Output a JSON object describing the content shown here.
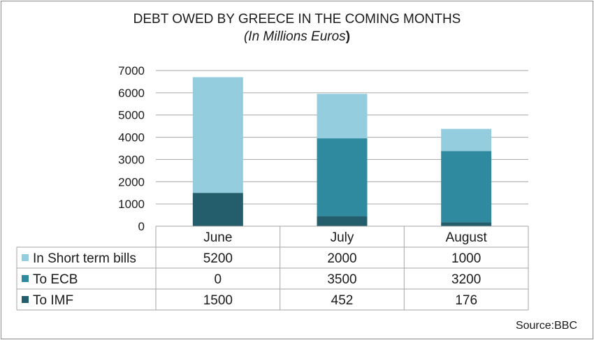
{
  "chart_data": {
    "type": "bar",
    "stacked": true,
    "title": "DEBT OWED BY GREECE IN THE COMING MONTHS",
    "subtitle_main": "(In Millions Euros",
    "subtitle_close": ")",
    "categories": [
      "June",
      "July",
      "August"
    ],
    "series": [
      {
        "name": "To IMF",
        "color": "#245d6b",
        "values": [
          1500,
          452,
          176
        ]
      },
      {
        "name": "To ECB",
        "color": "#2f8aa0",
        "values": [
          0,
          3500,
          3200
        ]
      },
      {
        "name": "In Short term bills",
        "color": "#94cddd",
        "values": [
          5200,
          2000,
          1000
        ]
      }
    ],
    "table_rows": [
      {
        "name": "In Short term bills",
        "color": "#94cddd",
        "values": [
          "5200",
          "2000",
          "1000"
        ]
      },
      {
        "name": "To ECB",
        "color": "#2f8aa0",
        "values": [
          "0",
          "3500",
          "3200"
        ]
      },
      {
        "name": "To IMF",
        "color": "#245d6b",
        "values": [
          "1500",
          "452",
          "176"
        ]
      }
    ],
    "yticks": [
      "0",
      "1000",
      "2000",
      "3000",
      "4000",
      "5000",
      "6000",
      "7000"
    ],
    "ylim": [
      0,
      7000
    ],
    "grid": true,
    "legend": "data-table"
  },
  "source": "Source:BBC"
}
